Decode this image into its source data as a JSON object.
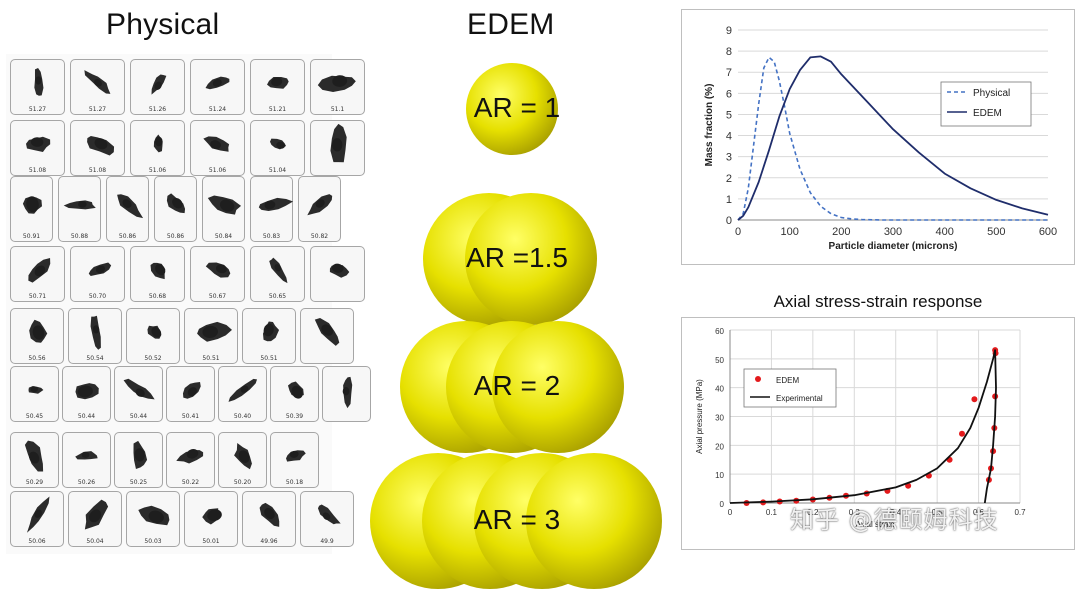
{
  "headings": {
    "physical": "Physical",
    "edem": "EDEM"
  },
  "particle_rows": [
    [
      "51.27",
      "51.27",
      "51.26",
      "51.24",
      "51.21",
      "51.1"
    ],
    [
      "51.08",
      "51.08",
      "51.06",
      "51.06",
      "51.04",
      ""
    ],
    [
      "50.91",
      "50.88",
      "50.86",
      "50.86",
      "50.84",
      "50.83",
      "50.82"
    ],
    [
      "50.71",
      "50.70",
      "50.68",
      "50.67",
      "50.65",
      ""
    ],
    [
      "50.56",
      "50.54",
      "50.52",
      "50.51",
      "50.51",
      ""
    ],
    [
      "50.45",
      "50.44",
      "50.44",
      "50.41",
      "50.40",
      "50.39",
      ""
    ],
    [
      "50.29",
      "50.26",
      "50.25",
      "50.22",
      "50.20",
      "50.18"
    ],
    [
      "50.06",
      "50.04",
      "50.03",
      "50.01",
      "49.96",
      "49.9"
    ]
  ],
  "aspect_ratios": [
    {
      "label": "AR = 1",
      "spheres": 1
    },
    {
      "label": "AR =1.5",
      "spheres": 1.5
    },
    {
      "label": "AR = 2",
      "spheres": 2
    },
    {
      "label": "AR = 3",
      "spheres": 3
    }
  ],
  "chart_data": [
    {
      "type": "line",
      "title": "",
      "xlabel": "Particle diameter (microns)",
      "ylabel": "Mass fraction (%)",
      "xlim": [
        0,
        600
      ],
      "ylim": [
        0,
        9
      ],
      "xticks": [
        "0",
        "100",
        "200",
        "300",
        "400",
        "500",
        "600"
      ],
      "yticks": [
        "0",
        "1",
        "2",
        "3",
        "4",
        "5",
        "6",
        "7",
        "8",
        "9"
      ],
      "grid": true,
      "legend": "right",
      "series": [
        {
          "name": "Physical",
          "style": "dashed",
          "color": "#4472c4",
          "x": [
            0,
            10,
            20,
            30,
            40,
            50,
            60,
            70,
            80,
            90,
            100,
            120,
            140,
            160,
            180,
            200,
            220,
            240,
            260,
            280,
            600
          ],
          "y": [
            0,
            0.3,
            1.5,
            3.5,
            5.5,
            7.2,
            7.7,
            7.5,
            6.6,
            5.4,
            4.1,
            2.4,
            1.3,
            0.65,
            0.3,
            0.12,
            0.05,
            0.02,
            0.01,
            0,
            0
          ]
        },
        {
          "name": "EDEM",
          "style": "solid",
          "color": "#1f2d6b",
          "x": [
            0,
            10,
            20,
            40,
            60,
            80,
            100,
            120,
            140,
            160,
            180,
            200,
            250,
            300,
            350,
            400,
            450,
            500,
            550,
            600
          ],
          "y": [
            0,
            0.2,
            0.6,
            1.8,
            3.3,
            4.9,
            6.2,
            7.1,
            7.7,
            7.75,
            7.5,
            6.9,
            5.6,
            4.3,
            3.2,
            2.2,
            1.5,
            0.95,
            0.55,
            0.25
          ]
        }
      ]
    },
    {
      "type": "scatter",
      "title": "Axial stress-strain response",
      "xlabel": "Axial strain",
      "ylabel": "Axial pressure (MPa)",
      "xlim": [
        0,
        0.7
      ],
      "ylim": [
        0,
        60
      ],
      "xticks": [
        "0",
        "0.1",
        "0.2",
        "0.3",
        "0.4",
        "0.5",
        "0.6",
        "0.7"
      ],
      "yticks": [
        "0",
        "10",
        "20",
        "30",
        "40",
        "50",
        "60"
      ],
      "grid": true,
      "legend": "top-left",
      "series": [
        {
          "name": "EDEM",
          "style": "markers",
          "color": "#e31a1c",
          "x": [
            0.04,
            0.08,
            0.12,
            0.16,
            0.2,
            0.24,
            0.28,
            0.33,
            0.38,
            0.43,
            0.48,
            0.53,
            0.56,
            0.59,
            0.64,
            0.625,
            0.63,
            0.635,
            0.638,
            0.64,
            0.641
          ],
          "y": [
            0,
            0.2,
            0.5,
            0.8,
            1.2,
            1.8,
            2.5,
            3.3,
            4.2,
            6.0,
            9.5,
            15,
            24,
            36,
            53,
            8,
            12,
            18,
            26,
            37,
            52
          ]
        },
        {
          "name": "Experimental",
          "style": "solid",
          "color": "#111111",
          "x": [
            0,
            0.1,
            0.2,
            0.3,
            0.4,
            0.45,
            0.5,
            0.55,
            0.58,
            0.6,
            0.62,
            0.635,
            0.64,
            0.642,
            0.64,
            0.635,
            0.63,
            0.62,
            0.615
          ],
          "y": [
            0,
            0.5,
            1.3,
            2.7,
            5.4,
            8,
            12,
            19,
            26,
            33,
            42,
            50,
            53,
            40,
            30,
            20,
            12,
            5,
            0
          ]
        }
      ]
    }
  ],
  "watermark": "知乎 @德颐姆科技"
}
